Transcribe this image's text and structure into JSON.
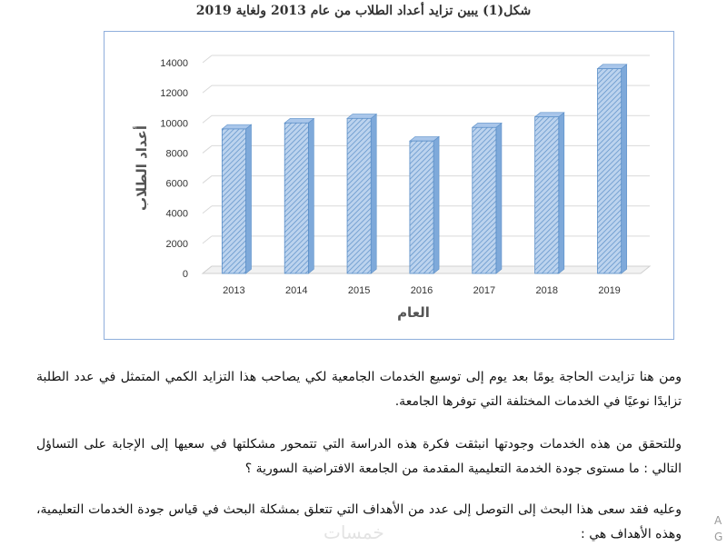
{
  "figure": {
    "caption": "شكل(1) يبين تزايد أعداد الطلاب من عام 2013 ولغاية 2019"
  },
  "chart_data": {
    "type": "bar",
    "categories": [
      "2013",
      "2014",
      "2015",
      "2016",
      "2017",
      "2018",
      "2019"
    ],
    "values": [
      9600,
      10000,
      10300,
      8800,
      9700,
      10400,
      13600
    ],
    "xlabel": "العام",
    "ylabel": "أعداد الطلاب",
    "ylim": [
      0,
      14000
    ],
    "yticks": [
      0,
      2000,
      4000,
      6000,
      8000,
      10000,
      12000,
      14000
    ],
    "grid": true,
    "bar_color": "#bcd3ee",
    "bar_hatch_color": "#5b8fc8"
  },
  "body": {
    "paragraph1": "ومن هنا تزايدت الحاجة يومًا بعد يوم إلى توسيع الخدمات الجامعية لكي يصاحب هذا التزايد الكمي المتمثل في عدد الطلبة تزايدًا نوعيًا في الخدمات المختلفة التي توفرها الجامعة.",
    "paragraph2": "وللتحقق من هذه الخدمات وجودتها انبثقت فكرة هذه الدراسة التي تتمحور مشكلتها في سعيها إلى الإجابة على التساؤل التالي : ما مستوى جودة الخدمة التعليمية المقدمة من الجامعة الافتراضية السورية ؟",
    "paragraph3": "وعليه فقد سعى هذا البحث إلى التوصل إلى عدد من الأهداف التي تتعلق بمشكلة البحث في قياس جودة الخدمات التعليمية، وهذه الأهداف هي :"
  },
  "watermark": "خمسات",
  "edge_marks": [
    "A",
    "G"
  ]
}
